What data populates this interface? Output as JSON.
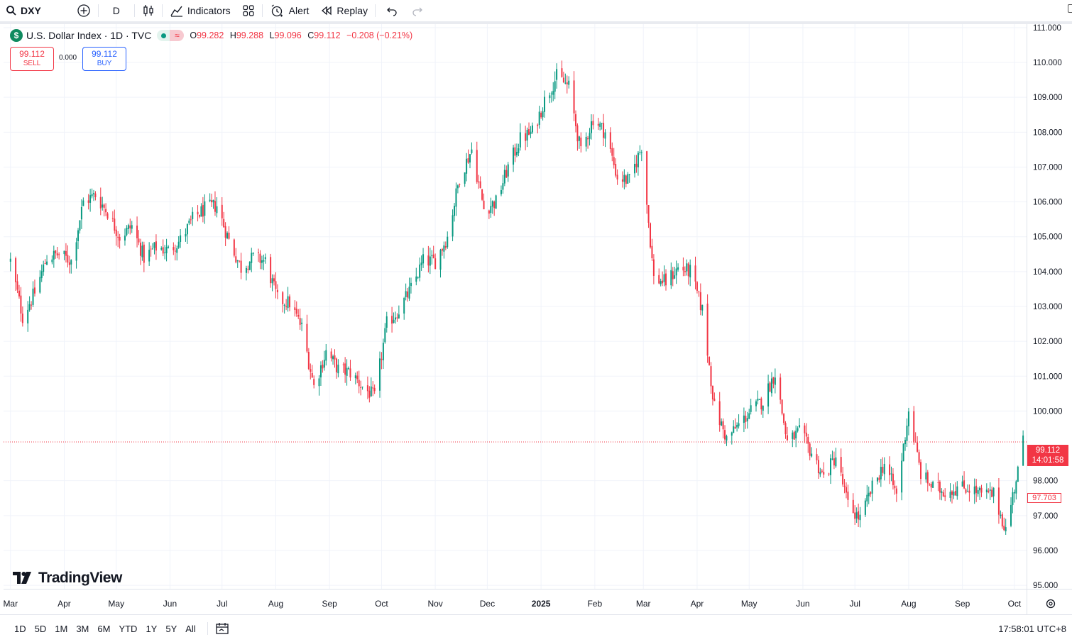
{
  "toolbar": {
    "symbol": "DXY",
    "interval": "D",
    "indicators_label": "Indicators",
    "alert_label": "Alert",
    "replay_label": "Replay"
  },
  "legend": {
    "title": "U.S. Dollar Index · 1D · TVC",
    "open_key": "O",
    "open": "99.282",
    "high_key": "H",
    "high": "99.288",
    "low_key": "L",
    "low": "99.096",
    "close_key": "C",
    "close": "99.112",
    "change": "−0.208 (−0.21%)"
  },
  "trade": {
    "sell_price": "99.112",
    "sell_label": "SELL",
    "spread": "0.000",
    "buy_price": "99.112",
    "buy_label": "BUY"
  },
  "price_tag": {
    "price": "99.112",
    "countdown": "14:01:58",
    "secondary": "97.703"
  },
  "brand": "TradingView",
  "bottombar": {
    "ranges": [
      "1D",
      "5D",
      "1M",
      "3M",
      "6M",
      "YTD",
      "1Y",
      "5Y",
      "All"
    ],
    "time": "17:58:01 UTC+8"
  },
  "colors": {
    "up": "#089981",
    "down": "#f23645",
    "grid": "#f0f3fa"
  },
  "chart_data": {
    "type": "candlestick",
    "title": "U.S. Dollar Index · 1D · TVC",
    "ylim": [
      94.9,
      111.1
    ],
    "y_ticks": [
      "111.000",
      "110.000",
      "109.000",
      "108.000",
      "107.000",
      "106.000",
      "105.000",
      "104.000",
      "103.000",
      "102.000",
      "101.000",
      "100.000",
      "98.000",
      "97.000",
      "96.000",
      "95.000"
    ],
    "x_ticks": [
      "Mar",
      "Apr",
      "May",
      "Jun",
      "Jul",
      "Aug",
      "Sep",
      "Oct",
      "Nov",
      "Dec",
      "2025",
      "Feb",
      "Mar",
      "Apr",
      "May",
      "Jun",
      "Jul",
      "Aug",
      "Sep",
      "Oct"
    ],
    "last_price": 99.112,
    "grid": true,
    "close_path": [
      [
        "2024-03-01",
        104.3
      ],
      [
        "2024-03-08",
        102.7
      ],
      [
        "2024-03-15",
        103.4
      ],
      [
        "2024-03-22",
        104.4
      ],
      [
        "2024-03-29",
        104.5
      ],
      [
        "2024-04-05",
        104.3
      ],
      [
        "2024-04-12",
        106.0
      ],
      [
        "2024-04-19",
        106.2
      ],
      [
        "2024-04-26",
        105.7
      ],
      [
        "2024-05-03",
        105.0
      ],
      [
        "2024-05-10",
        105.3
      ],
      [
        "2024-05-17",
        104.4
      ],
      [
        "2024-05-24",
        104.7
      ],
      [
        "2024-05-31",
        104.6
      ],
      [
        "2024-06-07",
        104.9
      ],
      [
        "2024-06-14",
        105.5
      ],
      [
        "2024-06-21",
        105.8
      ],
      [
        "2024-06-28",
        105.9
      ],
      [
        "2024-07-05",
        104.9
      ],
      [
        "2024-07-12",
        104.1
      ],
      [
        "2024-07-19",
        104.4
      ],
      [
        "2024-07-26",
        104.3
      ],
      [
        "2024-08-02",
        103.2
      ],
      [
        "2024-08-09",
        103.1
      ],
      [
        "2024-08-16",
        102.4
      ],
      [
        "2024-08-23",
        100.7
      ],
      [
        "2024-08-30",
        101.7
      ],
      [
        "2024-09-06",
        101.2
      ],
      [
        "2024-09-13",
        101.1
      ],
      [
        "2024-09-20",
        100.7
      ],
      [
        "2024-09-27",
        100.4
      ],
      [
        "2024-10-04",
        102.5
      ],
      [
        "2024-10-11",
        102.9
      ],
      [
        "2024-10-18",
        103.5
      ],
      [
        "2024-10-25",
        104.3
      ],
      [
        "2024-11-01",
        104.3
      ],
      [
        "2024-11-08",
        105.0
      ],
      [
        "2024-11-15",
        106.7
      ],
      [
        "2024-11-22",
        107.5
      ],
      [
        "2024-11-29",
        105.8
      ],
      [
        "2024-12-06",
        106.0
      ],
      [
        "2024-12-13",
        107.0
      ],
      [
        "2024-12-20",
        107.8
      ],
      [
        "2024-12-27",
        108.0
      ],
      [
        "2025-01-03",
        108.9
      ],
      [
        "2025-01-10",
        109.6
      ],
      [
        "2025-01-17",
        109.3
      ],
      [
        "2025-01-24",
        107.4
      ],
      [
        "2025-01-31",
        108.4
      ],
      [
        "2025-02-07",
        108.0
      ],
      [
        "2025-02-14",
        106.7
      ],
      [
        "2025-02-21",
        106.6
      ],
      [
        "2025-02-28",
        107.6
      ],
      [
        "2025-03-07",
        103.8
      ],
      [
        "2025-03-14",
        103.7
      ],
      [
        "2025-03-21",
        104.1
      ],
      [
        "2025-03-28",
        104.0
      ],
      [
        "2025-04-04",
        102.9
      ],
      [
        "2025-04-11",
        100.1
      ],
      [
        "2025-04-18",
        99.2
      ],
      [
        "2025-04-25",
        99.6
      ],
      [
        "2025-05-02",
        100.0
      ],
      [
        "2025-05-09",
        100.3
      ],
      [
        "2025-05-16",
        101.1
      ],
      [
        "2025-05-23",
        99.1
      ],
      [
        "2025-05-30",
        99.4
      ],
      [
        "2025-06-06",
        98.8
      ],
      [
        "2025-06-13",
        98.1
      ],
      [
        "2025-06-20",
        98.7
      ],
      [
        "2025-06-27",
        97.3
      ],
      [
        "2025-07-04",
        96.9
      ],
      [
        "2025-07-11",
        97.8
      ],
      [
        "2025-07-18",
        98.5
      ],
      [
        "2025-07-25",
        97.6
      ],
      [
        "2025-08-01",
        100.0
      ],
      [
        "2025-08-08",
        98.2
      ],
      [
        "2025-08-15",
        97.8
      ],
      [
        "2025-08-22",
        97.7
      ],
      [
        "2025-08-29",
        97.8
      ],
      [
        "2025-09-05",
        97.8
      ],
      [
        "2025-09-12",
        97.6
      ],
      [
        "2025-09-19",
        97.6
      ],
      [
        "2025-09-26",
        96.6
      ],
      [
        "2025-10-03",
        98.3
      ],
      [
        "2025-10-06",
        99.112
      ]
    ]
  }
}
